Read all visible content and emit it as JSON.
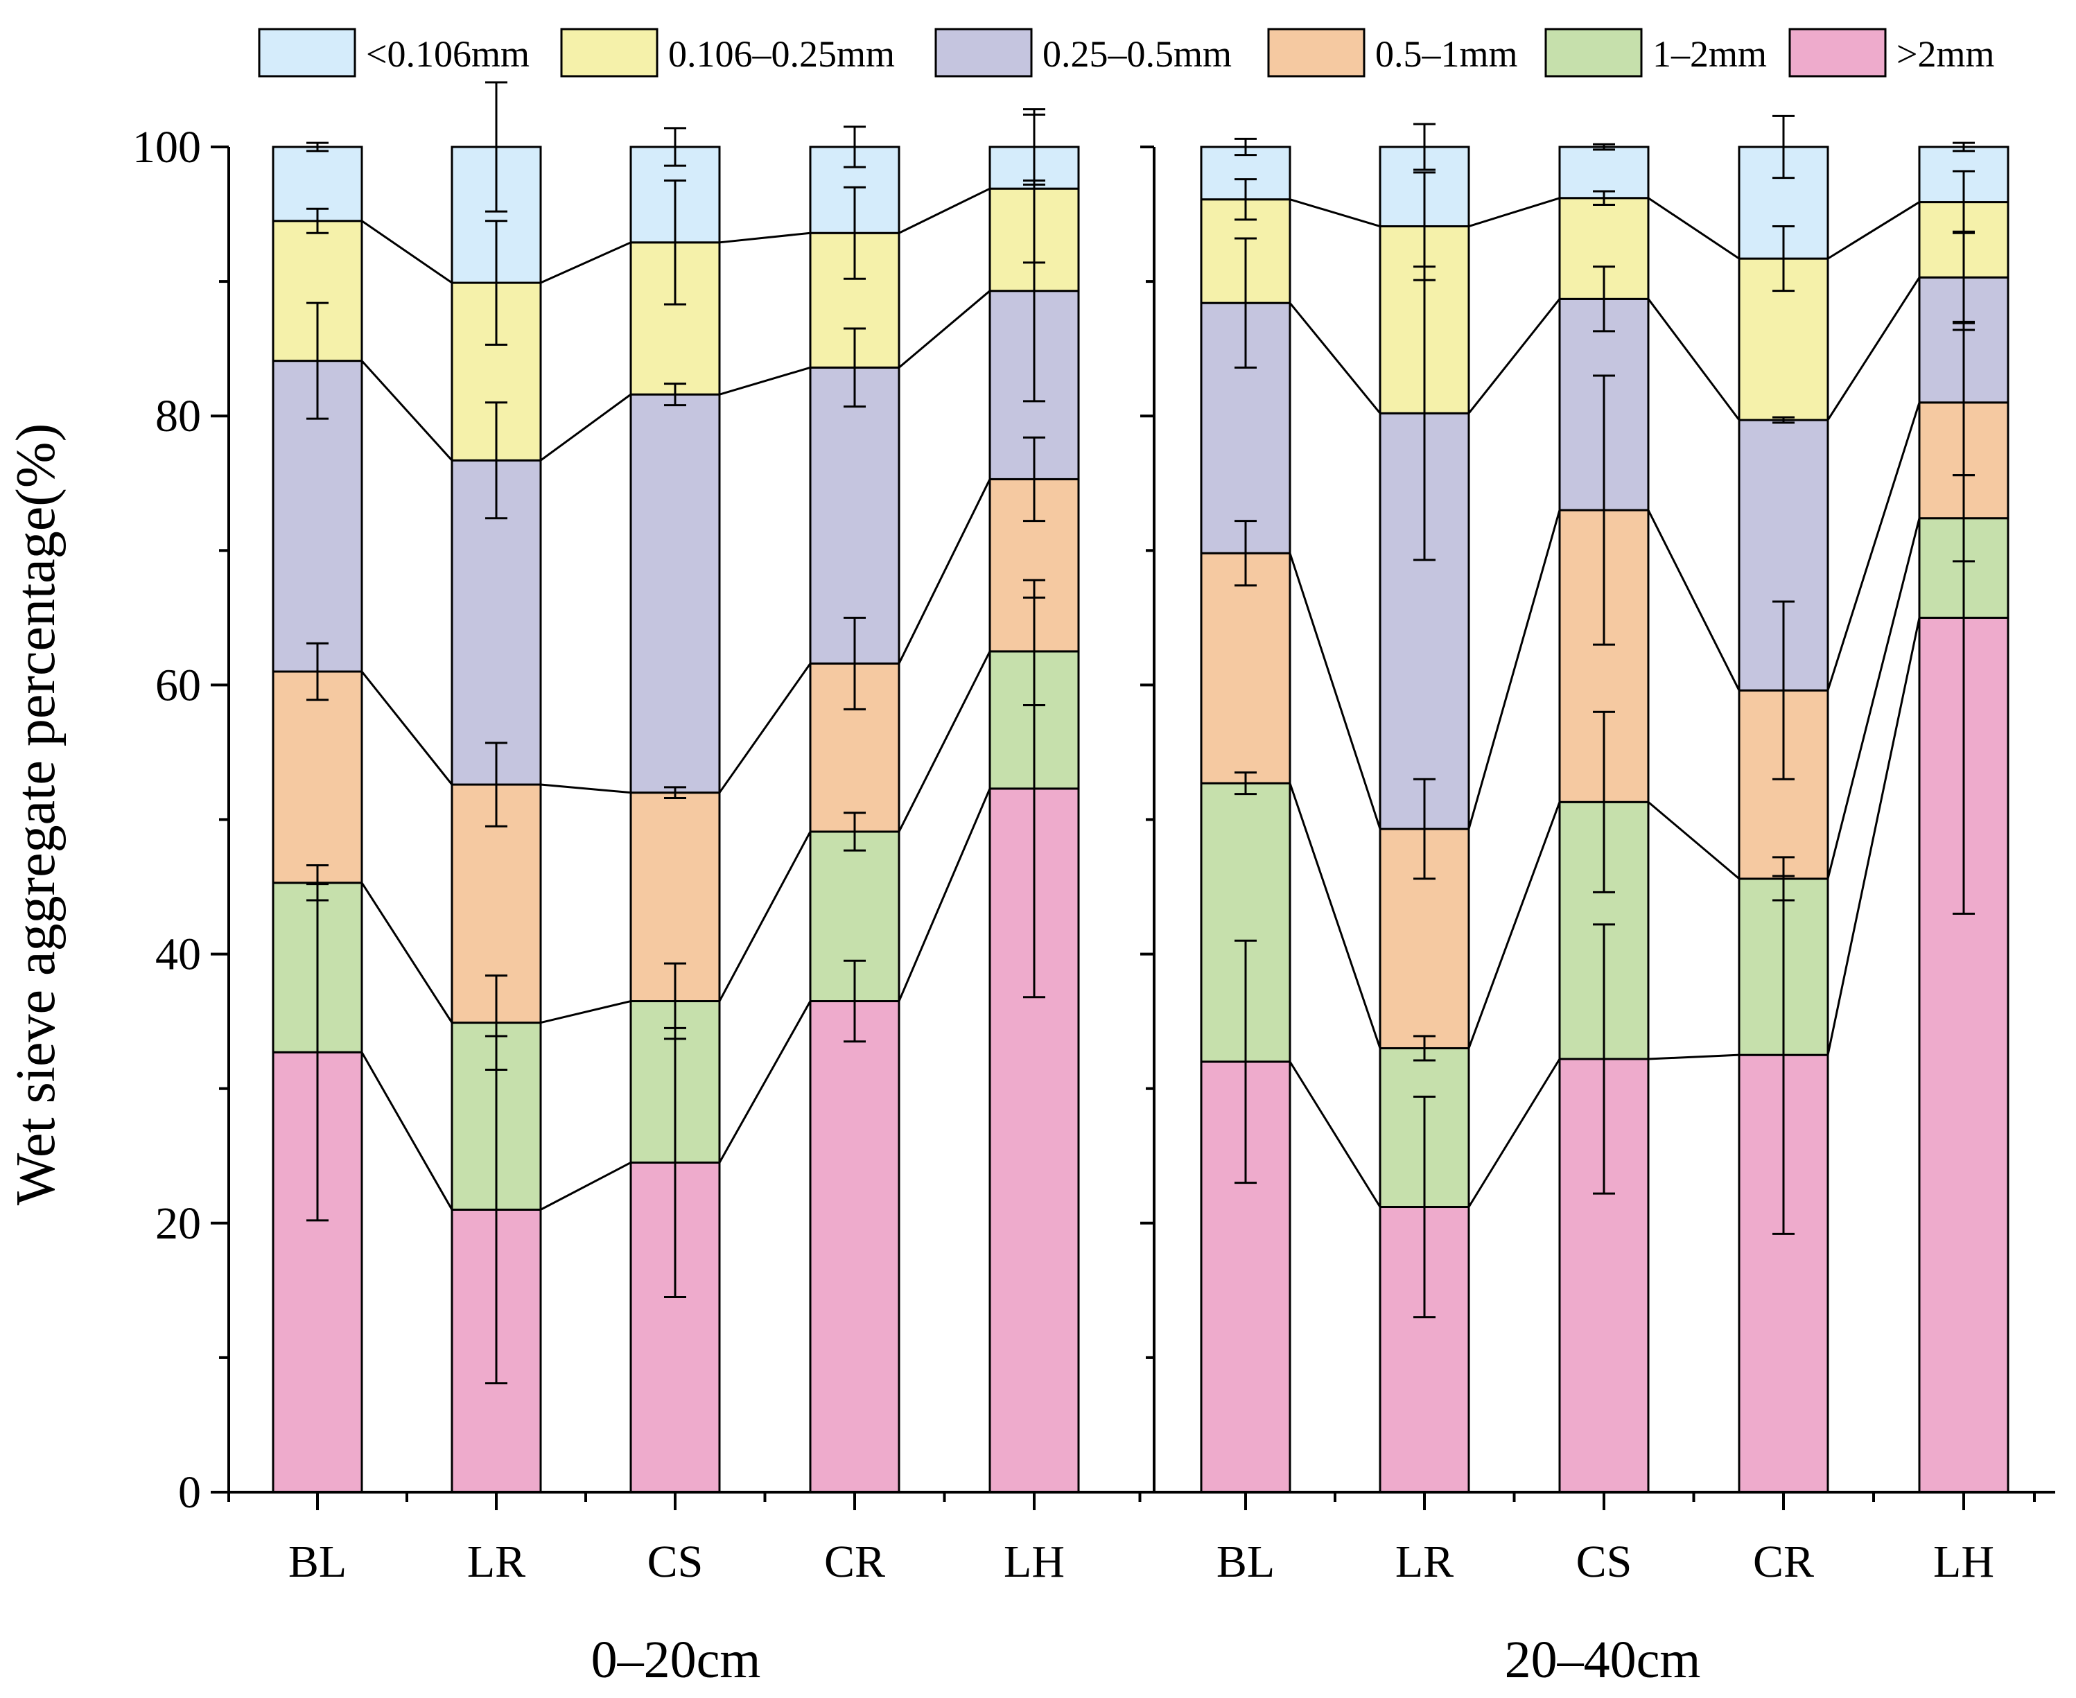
{
  "chart_data": {
    "type": "bar",
    "stacked": true,
    "ylabel": "Wet sieve aggregate percentage(%)",
    "ylim": [
      0,
      100
    ],
    "yticks": [
      "0",
      "20",
      "40",
      "60",
      "80",
      "100"
    ],
    "legend": {
      "placement": "top",
      "entries": [
        {
          "label": "<0.106mm",
          "color": "#d5ecfb"
        },
        {
          "label": "0.106–0.25mm",
          "color": "#f5f1aa"
        },
        {
          "label": "0.25–0.5mm",
          "color": "#c5c5df"
        },
        {
          "label": "0.5–1mm",
          "color": "#f5c9a1"
        },
        {
          "label": "1–2mm",
          "color": "#c6e0ac"
        },
        {
          "label": ">2mm",
          "color": "#eeabcc"
        }
      ]
    },
    "panels": [
      {
        "group_label": "0–20cm",
        "categories": [
          "BL",
          "LR",
          "CS",
          "CR",
          "LH"
        ],
        "cumulative_tops": {
          ">2mm": [
            32.7,
            21.0,
            24.5,
            36.5,
            52.3
          ],
          "1–2mm": [
            45.3,
            34.9,
            36.5,
            49.1,
            62.5
          ],
          "0.5–1mm": [
            61.0,
            52.6,
            52.0,
            61.6,
            75.3
          ],
          "0.25–0.5mm": [
            84.1,
            76.7,
            81.6,
            83.6,
            89.3
          ],
          "0.106–0.25mm": [
            94.5,
            89.9,
            92.9,
            93.6,
            96.9
          ],
          "<0.106mm": [
            100,
            100,
            100,
            100,
            100
          ]
        },
        "error_bars": {
          ">2mm": [
            12.5,
            12.9,
            10.0,
            3.0,
            15.5
          ],
          "1–2mm": [
            1.3,
            3.5,
            2.8,
            1.4,
            4.0
          ],
          "0.5–1mm": [
            2.1,
            3.1,
            0.4,
            3.4,
            3.1
          ],
          "0.25–0.5mm": [
            4.3,
            4.3,
            0.8,
            2.9,
            8.2
          ],
          "0.106–0.25mm": [
            0.9,
            4.6,
            4.6,
            3.4,
            5.5
          ],
          "<0.106mm": [
            0.3,
            4.8,
            1.4,
            1.5,
            2.8
          ]
        }
      },
      {
        "group_label": "20–40cm",
        "categories": [
          "BL",
          "LR",
          "CS",
          "CR",
          "LH"
        ],
        "cumulative_tops": {
          ">2mm": [
            32.0,
            21.2,
            32.2,
            32.5,
            65.0
          ],
          "1–2mm": [
            52.7,
            33.0,
            51.3,
            45.6,
            72.4
          ],
          "0.5–1mm": [
            69.8,
            49.3,
            73.0,
            59.6,
            81.0
          ],
          "0.25–0.5mm": [
            88.4,
            80.2,
            88.7,
            79.7,
            90.3
          ],
          "0.106–0.25mm": [
            96.1,
            94.1,
            96.2,
            91.7,
            95.9
          ],
          "<0.106mm": [
            100,
            100,
            100,
            100,
            100
          ]
        },
        "error_bars": {
          ">2mm": [
            9.0,
            8.2,
            10.0,
            13.3,
            22.0
          ],
          "1–2mm": [
            0.8,
            0.9,
            6.7,
            1.6,
            3.2
          ],
          "0.5–1mm": [
            2.4,
            3.7,
            10.0,
            6.6,
            5.4
          ],
          "0.25–0.5mm": [
            4.8,
            10.9,
            2.4,
            0.2,
            3.4
          ],
          "0.106–0.25mm": [
            1.5,
            4.0,
            0.5,
            2.4,
            2.3
          ],
          "<0.106mm": [
            0.6,
            1.7,
            0.2,
            2.3,
            0.3
          ]
        }
      }
    ]
  }
}
